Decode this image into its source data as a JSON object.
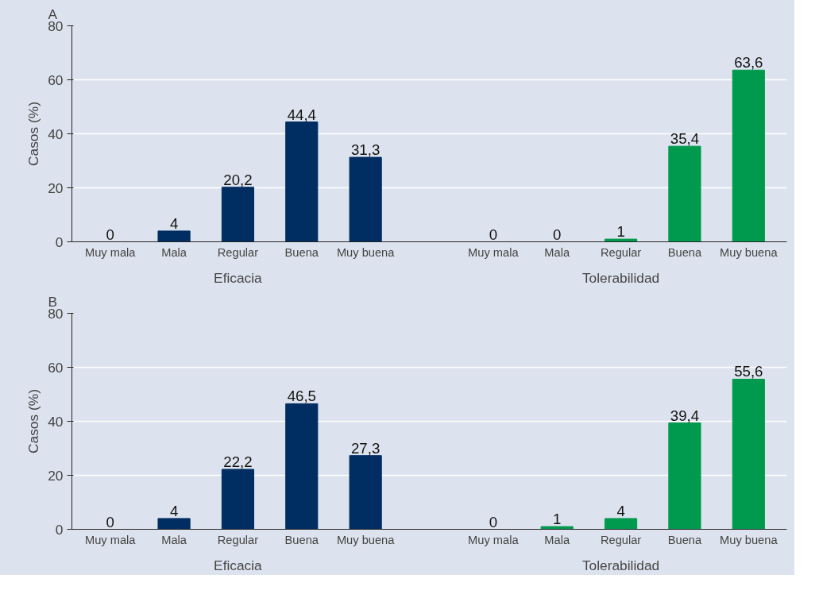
{
  "chart_data": [
    {
      "type": "bar",
      "title": "A",
      "ylabel": "Casos (%)",
      "categories": [
        "Muy mala",
        "Mala",
        "Regular",
        "Buena",
        "Muy buena",
        null,
        "Muy mala",
        "Mala",
        "Regular",
        "Buena",
        "Muy buena"
      ],
      "values": [
        0,
        4,
        20.2,
        44.4,
        31.3,
        null,
        0,
        0,
        1,
        35.4,
        63.6
      ],
      "value_labels": [
        "0",
        "4",
        "20,2",
        "44,4",
        "31,3",
        null,
        "0",
        "0",
        "1",
        "35,4",
        "63,6"
      ],
      "colors": [
        "#002d62",
        "#002d62",
        "#002d62",
        "#002d62",
        "#002d62",
        null,
        "#009a4e",
        "#009a4e",
        "#009a4e",
        "#009a4e",
        "#009a4e"
      ],
      "ylim": [
        0,
        80
      ],
      "yticks": [
        0,
        20,
        40,
        60,
        80
      ],
      "grid": "y",
      "annotations": [
        "Eficacia",
        "Tolerabilidad"
      ]
    },
    {
      "type": "bar",
      "title": "B",
      "ylabel": "Casos (%)",
      "categories": [
        "Muy mala",
        "Mala",
        "Regular",
        "Buena",
        "Muy buena",
        null,
        "Muy mala",
        "Mala",
        "Regular",
        "Buena",
        "Muy buena"
      ],
      "values": [
        0,
        4,
        22.2,
        46.5,
        27.3,
        null,
        0,
        1,
        4,
        39.4,
        55.6
      ],
      "value_labels": [
        "0",
        "4",
        "22,2",
        "46,5",
        "27,3",
        null,
        "0",
        "1",
        "4",
        "39,4",
        "55,6"
      ],
      "colors": [
        "#002d62",
        "#002d62",
        "#002d62",
        "#002d62",
        "#002d62",
        null,
        "#009a4e",
        "#009a4e",
        "#009a4e",
        "#009a4e",
        "#009a4e"
      ],
      "ylim": [
        0,
        80
      ],
      "yticks": [
        0,
        20,
        40,
        60,
        80
      ],
      "grid": "y",
      "annotations": [
        "Eficacia",
        "Tolerabilidad"
      ]
    }
  ]
}
